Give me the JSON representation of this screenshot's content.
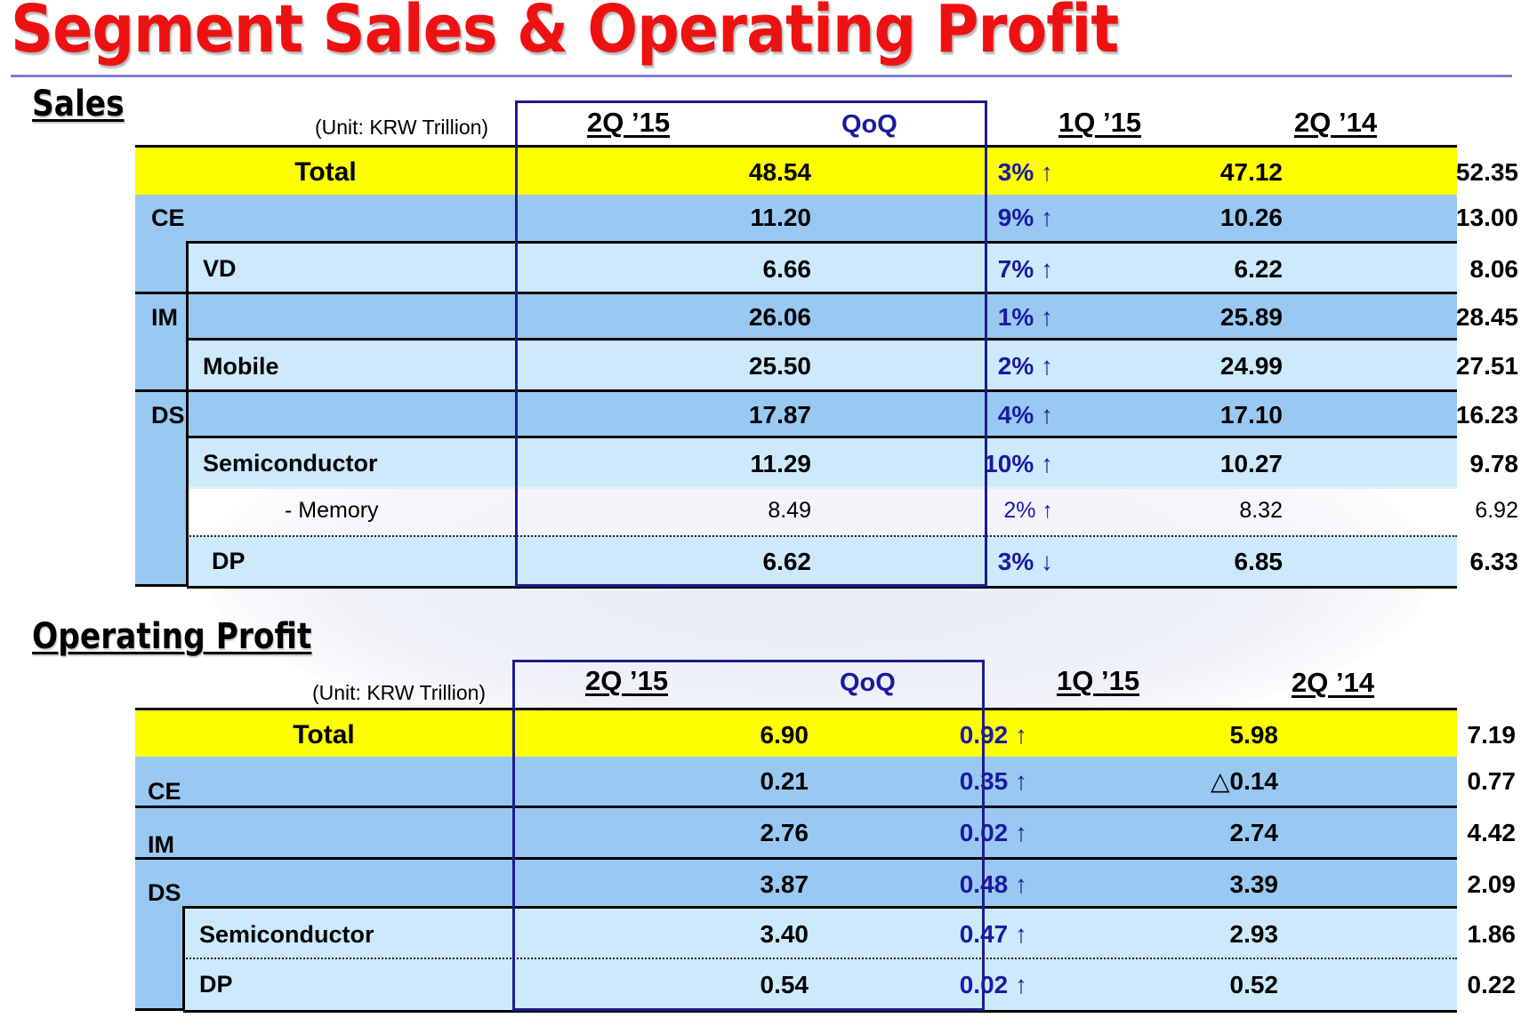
{
  "page_title": "Segment Sales & Operating Profit",
  "colors": {
    "title": "#ee1111",
    "total_row": "#ffff00",
    "dark_row": "#99c9f3",
    "light_row": "#cde9fc",
    "qoq_text": "#1a1aa0"
  },
  "sales": {
    "title": "Sales",
    "unit": "(Unit: KRW Trillion)",
    "headers": [
      "2Q ’15",
      "QoQ",
      "1Q ’15",
      "2Q ’14"
    ],
    "total": {
      "label": "Total",
      "values": [
        "48.54",
        "3% ↑",
        "47.12",
        "52.35"
      ]
    },
    "rows": [
      {
        "label": "CE",
        "values": [
          "11.20",
          "9% ↑",
          "10.26",
          "13.00"
        ]
      },
      {
        "label": "VD",
        "values": [
          "6.66",
          "7% ↑",
          "6.22",
          "8.06"
        ]
      },
      {
        "label": "IM",
        "values": [
          "26.06",
          "1% ↑",
          "25.89",
          "28.45"
        ]
      },
      {
        "label": "Mobile",
        "values": [
          "25.50",
          "2% ↑",
          "24.99",
          "27.51"
        ]
      },
      {
        "label": "DS",
        "values": [
          "17.87",
          "4% ↑",
          "17.10",
          "16.23"
        ]
      },
      {
        "label": "Semiconductor",
        "values": [
          "11.29",
          "10% ↑",
          "10.27",
          "9.78"
        ]
      },
      {
        "label": "- Memory",
        "values": [
          "8.49",
          "2% ↑",
          "8.32",
          "6.92"
        ]
      },
      {
        "label": "DP",
        "values": [
          "6.62",
          "3% ↓",
          "6.85",
          "6.33"
        ]
      }
    ]
  },
  "operating_profit": {
    "title": "Operating Profit",
    "unit": "(Unit: KRW Trillion)",
    "headers": [
      "2Q ’15",
      "QoQ",
      "1Q ’15",
      "2Q ’14"
    ],
    "total": {
      "label": "Total",
      "values": [
        "6.90",
        "0.92 ↑",
        "5.98",
        "7.19"
      ]
    },
    "rows": [
      {
        "label": "CE",
        "values": [
          "0.21",
          "0.35 ↑",
          "△0.14",
          "0.77"
        ]
      },
      {
        "label": "IM",
        "values": [
          "2.76",
          "0.02 ↑",
          "2.74",
          "4.42"
        ]
      },
      {
        "label": "DS",
        "values": [
          "3.87",
          "0.48 ↑",
          "3.39",
          "2.09"
        ]
      },
      {
        "label": "Semiconductor",
        "values": [
          "3.40",
          "0.47 ↑",
          "2.93",
          "1.86"
        ]
      },
      {
        "label": "DP",
        "values": [
          "0.54",
          "0.02 ↑",
          "0.52",
          "0.22"
        ]
      }
    ]
  }
}
